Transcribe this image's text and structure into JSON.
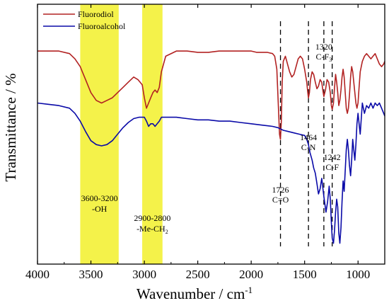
{
  "chart_data": {
    "type": "line",
    "title": "",
    "xlabel": "Wavenumber / cm",
    "xlabel_sup": "-1",
    "ylabel": "Transmittance / %",
    "xlim": [
      4000,
      750
    ],
    "x_reversed": true,
    "ylim": [
      0,
      100
    ],
    "grid": false,
    "legend_position": "top-left",
    "x_ticks": [
      "4000",
      "3500",
      "3000",
      "2500",
      "2000",
      "1500",
      "1000"
    ],
    "colors": {
      "Fluorodiol": "#b22222",
      "Fluoroalcohol": "#0a0aa8",
      "band": "#f4f24a"
    },
    "highlight_bands": [
      {
        "from": 3600,
        "to": 3240,
        "label_lines": [
          "3600-3200",
          "-OH"
        ]
      },
      {
        "from": 3020,
        "to": 2830,
        "label_lines": [
          "2900-2800",
          "-Me-CH",
          "2"
        ]
      }
    ],
    "peak_markers": [
      {
        "x": 1726,
        "label_lines": [
          "1726",
          "C=O"
        ]
      },
      {
        "x": 1464,
        "label_lines": [
          "1464",
          "C-N"
        ]
      },
      {
        "x": 1320,
        "label_lines": [
          "1320",
          "C-F",
          "3"
        ]
      },
      {
        "x": 1242,
        "label_lines": [
          "1242",
          "C-F"
        ]
      }
    ],
    "series": [
      {
        "name": "Fluorodiol",
        "x": [
          4000,
          3900,
          3800,
          3700,
          3650,
          3600,
          3550,
          3500,
          3450,
          3400,
          3350,
          3300,
          3250,
          3200,
          3150,
          3100,
          3060,
          3020,
          3000,
          2980,
          2960,
          2940,
          2920,
          2900,
          2880,
          2860,
          2840,
          2800,
          2700,
          2600,
          2500,
          2400,
          2300,
          2200,
          2100,
          2000,
          1950,
          1900,
          1850,
          1800,
          1780,
          1760,
          1745,
          1735,
          1726,
          1718,
          1710,
          1700,
          1680,
          1660,
          1640,
          1620,
          1600,
          1580,
          1560,
          1540,
          1520,
          1500,
          1480,
          1470,
          1464,
          1455,
          1445,
          1430,
          1415,
          1400,
          1385,
          1370,
          1355,
          1340,
          1330,
          1320,
          1305,
          1290,
          1275,
          1260,
          1250,
          1242,
          1230,
          1220,
          1210,
          1200,
          1190,
          1180,
          1170,
          1160,
          1150,
          1140,
          1130,
          1120,
          1110,
          1100,
          1090,
          1080,
          1070,
          1060,
          1050,
          1040,
          1030,
          1020,
          1010,
          1000,
          990,
          980,
          960,
          940,
          920,
          900,
          880,
          860,
          840,
          820,
          800,
          780,
          760,
          750
        ],
        "values": [
          82,
          82,
          82,
          81,
          79,
          76,
          71,
          66,
          63,
          62,
          63,
          64,
          66,
          68,
          70,
          72,
          71,
          69,
          64,
          60,
          62,
          64,
          66,
          67,
          66,
          68,
          74,
          80,
          82,
          82,
          81.5,
          81.5,
          82,
          82,
          82,
          82,
          81.5,
          81.5,
          81.5,
          81,
          80,
          75,
          60,
          50,
          48,
          55,
          70,
          78,
          80,
          77,
          74,
          72,
          73,
          76,
          79,
          80,
          79,
          75,
          70,
          66,
          64,
          66,
          71,
          74,
          73,
          70,
          67.5,
          68.5,
          71,
          70,
          67,
          64.5,
          67,
          71,
          70,
          66,
          61,
          59.5,
          62,
          68,
          73,
          70,
          66,
          61,
          63,
          67,
          72,
          75,
          72,
          66,
          60,
          58,
          60,
          65,
          72,
          76,
          74,
          70,
          66,
          62,
          60,
          62,
          68,
          74,
          78,
          80,
          81,
          80,
          79,
          80,
          81,
          79,
          77,
          76,
          77,
          78
        ]
      },
      {
        "name": "Fluoroalcohol",
        "x": [
          4000,
          3900,
          3800,
          3700,
          3650,
          3600,
          3550,
          3500,
          3450,
          3400,
          3350,
          3300,
          3250,
          3200,
          3150,
          3100,
          3050,
          3000,
          2980,
          2960,
          2940,
          2920,
          2900,
          2880,
          2860,
          2840,
          2800,
          2700,
          2600,
          2500,
          2400,
          2300,
          2200,
          2100,
          2000,
          1900,
          1800,
          1750,
          1700,
          1650,
          1600,
          1550,
          1500,
          1480,
          1464,
          1450,
          1430,
          1415,
          1400,
          1385,
          1370,
          1355,
          1340,
          1320,
          1300,
          1285,
          1270,
          1260,
          1250,
          1242,
          1230,
          1220,
          1210,
          1200,
          1190,
          1180,
          1170,
          1160,
          1150,
          1140,
          1130,
          1120,
          1110,
          1100,
          1090,
          1080,
          1070,
          1060,
          1050,
          1040,
          1030,
          1020,
          1010,
          1000,
          990,
          980,
          970,
          960,
          950,
          940,
          920,
          900,
          880,
          860,
          840,
          820,
          800,
          780,
          760,
          750
        ],
        "values": [
          62,
          61.5,
          61,
          60,
          58,
          55,
          51,
          47.5,
          46,
          45.5,
          46,
          47.5,
          50,
          52.5,
          54.5,
          56,
          56.5,
          56.5,
          55,
          53,
          54,
          54,
          53,
          54,
          55,
          56.5,
          56.5,
          56.5,
          56,
          55.5,
          55.5,
          55,
          55,
          54.5,
          54,
          53.5,
          53,
          52.5,
          51.5,
          51,
          50.5,
          50,
          49.5,
          48,
          46,
          43,
          40,
          37,
          35,
          31,
          27,
          29,
          33,
          26,
          20,
          24,
          30,
          25,
          16,
          10,
          8,
          13,
          20,
          25,
          22,
          12,
          8,
          14,
          24,
          32,
          28,
          36,
          44,
          48,
          44,
          38,
          34,
          40,
          48,
          44,
          40,
          46,
          54,
          58,
          54,
          50,
          56,
          62,
          60,
          58,
          61,
          60,
          62,
          60,
          62,
          61,
          62,
          60,
          58,
          57
        ]
      }
    ]
  }
}
